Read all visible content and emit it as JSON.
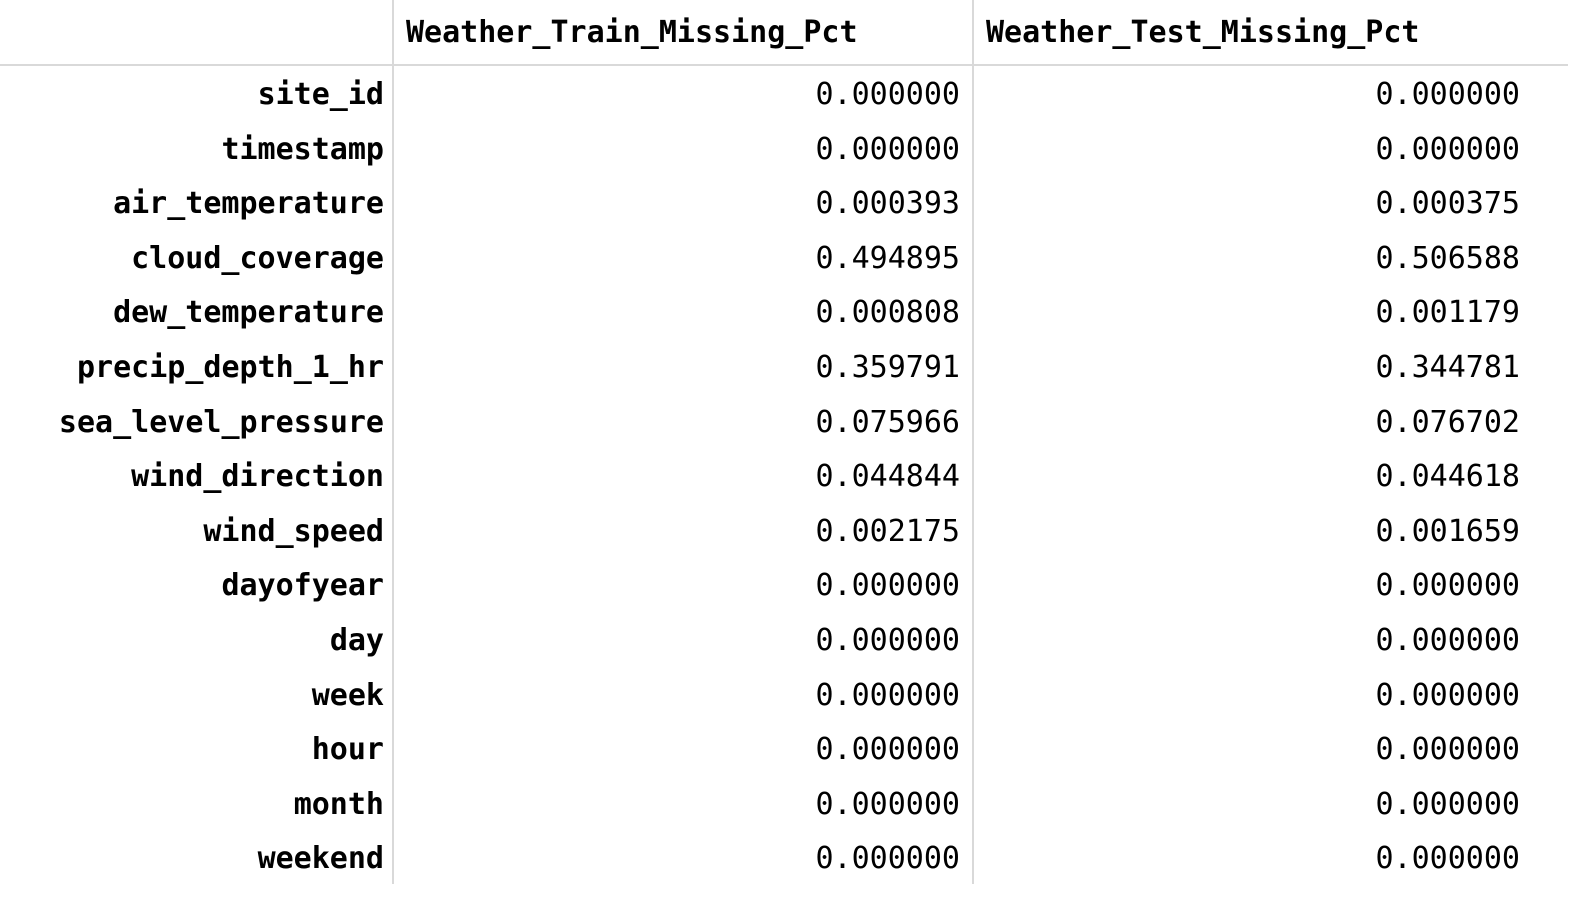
{
  "table": {
    "index_header": "",
    "columns": [
      "Weather_Train_Missing_Pct",
      "Weather_Test_Missing_Pct"
    ],
    "rows": [
      {
        "label": "site_id",
        "train": "0.000000",
        "test": "0.000000"
      },
      {
        "label": "timestamp",
        "train": "0.000000",
        "test": "0.000000"
      },
      {
        "label": "air_temperature",
        "train": "0.000393",
        "test": "0.000375"
      },
      {
        "label": "cloud_coverage",
        "train": "0.494895",
        "test": "0.506588"
      },
      {
        "label": "dew_temperature",
        "train": "0.000808",
        "test": "0.001179"
      },
      {
        "label": "precip_depth_1_hr",
        "train": "0.359791",
        "test": "0.344781"
      },
      {
        "label": "sea_level_pressure",
        "train": "0.075966",
        "test": "0.076702"
      },
      {
        "label": "wind_direction",
        "train": "0.044844",
        "test": "0.044618"
      },
      {
        "label": "wind_speed",
        "train": "0.002175",
        "test": "0.001659"
      },
      {
        "label": "dayofyear",
        "train": "0.000000",
        "test": "0.000000"
      },
      {
        "label": "day",
        "train": "0.000000",
        "test": "0.000000"
      },
      {
        "label": "week",
        "train": "0.000000",
        "test": "0.000000"
      },
      {
        "label": "hour",
        "train": "0.000000",
        "test": "0.000000"
      },
      {
        "label": "month",
        "train": "0.000000",
        "test": "0.000000"
      },
      {
        "label": "weekend",
        "train": "0.000000",
        "test": "0.000000"
      }
    ]
  }
}
